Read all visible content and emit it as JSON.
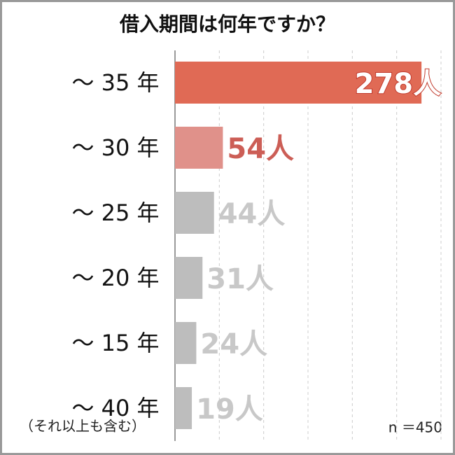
{
  "chart_data": {
    "type": "hbar",
    "title": "借入期間は何年ですか？",
    "categories": [
      "～ 35 年",
      "～ 30 年",
      "～ 25 年",
      "～ 20 年",
      "～ 15 年",
      "～ 40 年"
    ],
    "category_note": "（それ以上も含む）",
    "values": [
      278,
      54,
      44,
      31,
      24,
      19
    ],
    "value_labels": [
      "278人",
      "54人",
      "44人",
      "31人",
      "24人",
      "19人"
    ],
    "colors": [
      "#e06a55",
      "#e0918a",
      "#bdbdbd",
      "#bdbdbd",
      "#bdbdbd",
      "#bdbdbd"
    ],
    "label_colors": [
      "#ffffff",
      "#cc5e56",
      "#c8c8c8",
      "#c8c8c8",
      "#c8c8c8",
      "#c8c8c8"
    ],
    "xlim": [
      0,
      300
    ],
    "xticks": [
      50,
      100,
      150,
      200,
      250,
      300
    ],
    "grid": true,
    "note": "n ＝450"
  }
}
